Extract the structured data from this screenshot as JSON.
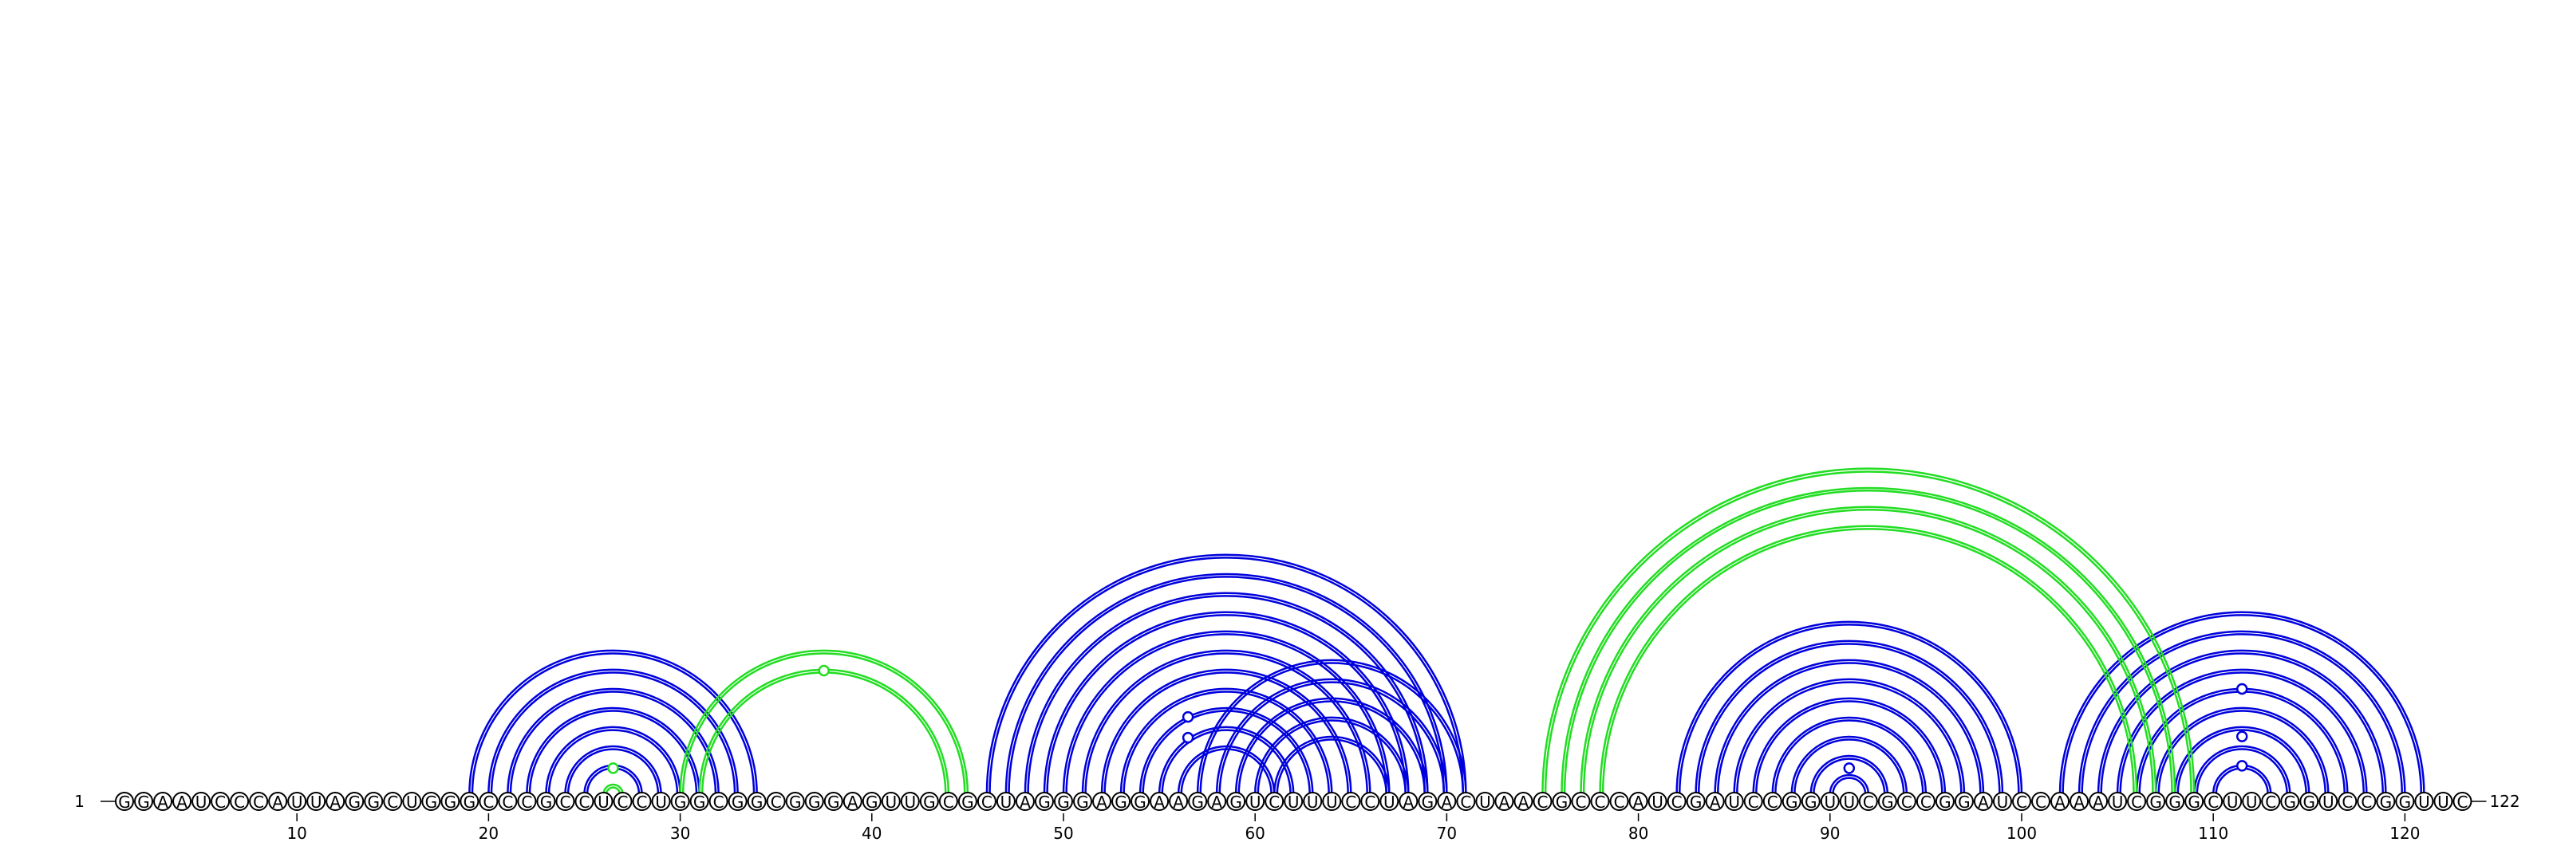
{
  "sequence": "GGAAUCCCAUUAGGCUGGGCCCGCCUCCUGGCGGCGGGAGUUGCGCUAGGGAGGAAGAGUCUUUCCUAGACUAACGCCCAUCGAUCCGGUUCGCCGGAUCCAAAUCGGGCUUCGGUCCGGUUC",
  "start_label": "1",
  "end_label": "122",
  "ticks": [
    "10",
    "20",
    "30",
    "40",
    "50",
    "60",
    "70",
    "80",
    "90",
    "100",
    "110",
    "120"
  ],
  "colors": {
    "blue": "#0000dd",
    "green": "#22dd22"
  },
  "pairs_blue": [
    [
      19,
      34
    ],
    [
      20,
      33
    ],
    [
      21,
      32
    ],
    [
      22,
      31
    ],
    [
      23,
      30
    ],
    [
      24,
      29
    ],
    [
      25,
      28
    ],
    [
      46,
      71
    ],
    [
      47,
      70
    ],
    [
      48,
      69
    ],
    [
      49,
      68
    ],
    [
      50,
      67
    ],
    [
      51,
      66
    ],
    [
      52,
      65
    ],
    [
      53,
      64
    ],
    [
      54,
      63
    ],
    [
      55,
      62
    ],
    [
      56,
      61
    ],
    [
      57,
      71
    ],
    [
      58,
      70
    ],
    [
      59,
      69
    ],
    [
      60,
      68
    ],
    [
      61,
      67
    ],
    [
      82,
      100
    ],
    [
      83,
      99
    ],
    [
      84,
      98
    ],
    [
      85,
      97
    ],
    [
      86,
      96
    ],
    [
      87,
      95
    ],
    [
      88,
      94
    ],
    [
      89,
      93
    ],
    [
      90,
      92
    ],
    [
      102,
      121
    ],
    [
      103,
      120
    ],
    [
      104,
      119
    ],
    [
      105,
      118
    ],
    [
      106,
      117
    ],
    [
      107,
      116
    ],
    [
      108,
      115
    ],
    [
      109,
      114
    ],
    [
      110,
      113
    ]
  ],
  "pairs_green": [
    [
      26,
      27
    ],
    [
      30,
      45
    ],
    [
      31,
      44
    ],
    [
      75,
      109
    ],
    [
      76,
      108
    ],
    [
      77,
      107
    ],
    [
      78,
      106
    ]
  ],
  "markers_blue": [
    [
      56.5,
      0.62
    ],
    [
      56.5,
      0.45
    ],
    [
      91,
      0.2
    ],
    [
      111.5,
      0.85
    ],
    [
      111.5,
      0.46
    ],
    [
      111.5,
      0.22
    ]
  ],
  "markers_green": [
    [
      37.5,
      1.0
    ],
    [
      26.5,
      0.2
    ]
  ]
}
